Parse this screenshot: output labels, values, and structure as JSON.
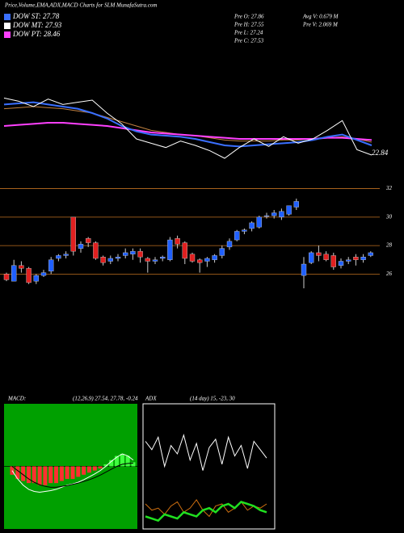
{
  "header": {
    "title": "Price,Volume,EMA,ADX,MACD Charts for SLM MunafaSutra.com",
    "legend": [
      {
        "label": "DOW ST: 27.78",
        "color": "#3a6fff"
      },
      {
        "label": "DOW MT: 27.93",
        "color": "#ffffff"
      },
      {
        "label": "DOW PT: 28.46",
        "color": "#ff40ff"
      }
    ],
    "stats": [
      "Pre  O: 27.86",
      "Pre  H: 27.55",
      "Pre  L: 27.24",
      "Pre  C: 27.53",
      "Avg V: 0.679 M",
      "Pre  V: 2.069 M"
    ]
  },
  "chart_data": [
    {
      "type": "line",
      "annotation": "22.84",
      "ylim": [
        21,
        33
      ],
      "series": [
        {
          "color": "#ffffff",
          "values": [
            28.4,
            28.1,
            27.6,
            28.3,
            27.8,
            28.0,
            28.2,
            27.0,
            26.0,
            24.6,
            24.2,
            23.8,
            24.4,
            24.0,
            23.5,
            22.8,
            23.8,
            24.6,
            23.9,
            24.8,
            24.2,
            24.6,
            25.4,
            26.3,
            23.6,
            23.1
          ]
        },
        {
          "color": "#3a6fff",
          "values": [
            27.8,
            27.9,
            28.0,
            27.8,
            27.6,
            27.4,
            27.0,
            26.5,
            25.8,
            25.3,
            25.0,
            24.9,
            24.8,
            24.6,
            24.3,
            24.0,
            23.9,
            24.0,
            24.1,
            24.2,
            24.3,
            24.5,
            24.8,
            25.0,
            24.5,
            24.0
          ]
        },
        {
          "color": "#ff40ff",
          "values": [
            25.8,
            25.9,
            26.0,
            26.1,
            26.1,
            26.0,
            25.9,
            25.8,
            25.6,
            25.4,
            25.2,
            25.1,
            25.0,
            24.9,
            24.8,
            24.7,
            24.6,
            24.6,
            24.6,
            24.6,
            24.6,
            24.6,
            24.7,
            24.7,
            24.6,
            24.5
          ]
        },
        {
          "color": "#c08040",
          "values": [
            27.4,
            27.5,
            27.6,
            27.5,
            27.4,
            27.2,
            27.0,
            26.6,
            26.2,
            25.8,
            25.4,
            25.2,
            25.0,
            24.9,
            24.7,
            24.5,
            24.4,
            24.4,
            24.4,
            24.5,
            24.5,
            24.6,
            24.7,
            24.8,
            24.6,
            24.3
          ]
        }
      ]
    },
    {
      "type": "candlestick",
      "ylim": [
        25,
        32.6
      ],
      "yticks": [
        32,
        30,
        28,
        26
      ],
      "up_color": "#2060ff",
      "down_color": "#e02020",
      "grid_color": "#c07020",
      "open": [
        26.0,
        25.5,
        26.6,
        26.4,
        25.5,
        25.9,
        26.2,
        27.1,
        27.3,
        30.0,
        27.8,
        28.5,
        28.2,
        27.2,
        26.9,
        27.1,
        27.3,
        27.4,
        27.6,
        27.1,
        26.9,
        27.1,
        27.0,
        28.5,
        28.2,
        27.4,
        27.0,
        26.9,
        27.0,
        27.3,
        27.9,
        28.4,
        29.0,
        29.2,
        29.3,
        30.1,
        30.1,
        30.0,
        30.2,
        30.7,
        25.9,
        26.8,
        27.5,
        27.4,
        27.3,
        26.6,
        26.9,
        27.2,
        27.0,
        27.3
      ],
      "high": [
        26.1,
        27.0,
        26.9,
        26.5,
        26.0,
        26.3,
        27.2,
        27.4,
        27.6,
        30.0,
        28.3,
        28.6,
        28.3,
        27.3,
        27.3,
        27.4,
        27.8,
        27.8,
        27.8,
        27.2,
        27.2,
        27.3,
        28.6,
        28.7,
        28.3,
        27.5,
        27.1,
        27.2,
        27.4,
        28.0,
        28.5,
        29.1,
        29.2,
        29.7,
        30.1,
        30.3,
        30.5,
        30.6,
        30.8,
        31.3,
        27.2,
        27.6,
        28.0,
        27.6,
        27.5,
        27.1,
        27.2,
        27.4,
        27.4,
        27.6
      ],
      "low": [
        25.5,
        25.5,
        26.1,
        25.3,
        25.3,
        25.8,
        26.0,
        26.9,
        27.1,
        27.3,
        27.5,
        27.9,
        27.0,
        26.6,
        26.7,
        26.9,
        27.1,
        27.0,
        26.8,
        26.1,
        26.7,
        26.9,
        26.9,
        27.8,
        26.7,
        26.8,
        26.1,
        26.5,
        26.8,
        27.1,
        27.7,
        28.3,
        28.8,
        29.0,
        29.2,
        29.9,
        29.9,
        29.8,
        30.1,
        30.5,
        25.0,
        26.7,
        26.9,
        26.9,
        26.3,
        26.4,
        26.7,
        26.6,
        26.8,
        27.2
      ],
      "close": [
        25.6,
        26.6,
        26.4,
        25.4,
        25.9,
        26.1,
        27.0,
        27.3,
        27.4,
        27.6,
        28.1,
        28.2,
        27.1,
        26.8,
        27.1,
        27.2,
        27.5,
        27.6,
        27.2,
        26.9,
        27.0,
        27.2,
        28.4,
        28.1,
        27.1,
        26.9,
        26.8,
        27.1,
        27.3,
        27.8,
        28.3,
        29.0,
        29.1,
        29.6,
        30.0,
        30.1,
        30.3,
        30.4,
        30.8,
        31.1,
        26.7,
        27.5,
        27.3,
        27.0,
        26.5,
        26.9,
        27.0,
        27.0,
        27.2,
        27.5
      ]
    },
    {
      "type": "macd",
      "title": "MACD:",
      "params": "(12,26,9) 27.54, 27.78, -0.24",
      "ylim": [
        -1.5,
        1.5
      ],
      "histogram": [
        -0.2,
        -0.3,
        -0.35,
        -0.4,
        -0.4,
        -0.45,
        -0.45,
        -0.4,
        -0.4,
        -0.35,
        -0.3,
        -0.3,
        -0.25,
        -0.2,
        -0.15,
        -0.1,
        -0.05,
        0.05,
        0.15,
        0.25,
        0.3,
        0.25,
        0.1
      ],
      "macd": [
        -0.1,
        -0.3,
        -0.45,
        -0.55,
        -0.6,
        -0.62,
        -0.6,
        -0.58,
        -0.55,
        -0.5,
        -0.45,
        -0.42,
        -0.38,
        -0.32,
        -0.25,
        -0.18,
        -0.1,
        0.0,
        0.12,
        0.22,
        0.3,
        0.25,
        0.15
      ],
      "signal": [
        0.0,
        -0.1,
        -0.2,
        -0.3,
        -0.38,
        -0.44,
        -0.48,
        -0.5,
        -0.5,
        -0.48,
        -0.46,
        -0.43,
        -0.4,
        -0.36,
        -0.32,
        -0.27,
        -0.21,
        -0.14,
        -0.07,
        0.0,
        0.05,
        0.07,
        0.08
      ]
    },
    {
      "type": "adx",
      "title": "ADX",
      "params": "(14 day) 15, -23, 30",
      "ylim": [
        0,
        60
      ],
      "series": [
        {
          "color": "#ffffff",
          "values": [
            42,
            38,
            44,
            30,
            40,
            36,
            45,
            33,
            41,
            28,
            39,
            43,
            31,
            44,
            35,
            40,
            29,
            42,
            38,
            34
          ]
        },
        {
          "color": "#d07010",
          "values": [
            12,
            9,
            10,
            7,
            11,
            13,
            8,
            10,
            14,
            9,
            6,
            11,
            12,
            8,
            10,
            13,
            9,
            11,
            10,
            12
          ]
        },
        {
          "color": "#20e020",
          "values": [
            6,
            5,
            4,
            7,
            6,
            5,
            8,
            7,
            6,
            9,
            10,
            8,
            11,
            12,
            10,
            13,
            12,
            11,
            9,
            8
          ]
        }
      ]
    }
  ]
}
